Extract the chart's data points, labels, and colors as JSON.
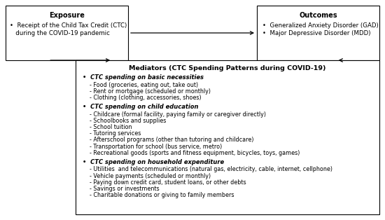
{
  "exposure_title": "Exposure",
  "exposure_line1": "•  Receipt of the Child Tax Credit (CTC)",
  "exposure_line2": "   during the COVID-19 pandemic",
  "outcomes_title": "Outcomes",
  "outcomes_line1": "•  Generalized Anxiety Disorder (GAD)",
  "outcomes_line2": "•  Major Depressive Disorder (MDD)",
  "mediator_title": "Mediators (CTC Spending Patterns during COVID-19)",
  "mediator_sections": [
    {
      "header": "•  CTC spending on basic necessities",
      "items": [
        "- Food (groceries, eating out, take out)",
        "- Rent or mortgage (scheduled or monthly)",
        "- Clothing (clothing, accessories, shoes)"
      ]
    },
    {
      "header": "•  CTC spending on child education",
      "items": [
        "- Childcare (formal facility, paying family or caregiver directly)",
        "- Schoolbooks and supplies",
        "- School tuition",
        "- Tutoring services",
        "- Afterschool programs (other than tutoring and childcare)",
        "- Transportation for school (bus service, metro)",
        "- Recreational goods (sports and fitness equipment, bicycles, toys, games)"
      ]
    },
    {
      "header": "•  CTC spending on household expenditure",
      "items": [
        "- Utilities  and telecommunications (natural gas, electricity, cable, internet, cellphone)",
        "- Vehicle payments (scheduled or monthly)",
        "- Paying down credit card, student loans, or other debts",
        "- Savings or investments",
        "- Charitable donations or giving to family members"
      ]
    }
  ],
  "box_color": "#ffffff",
  "box_edge_color": "#000000",
  "text_color": "#000000",
  "bg_color": "#ffffff"
}
